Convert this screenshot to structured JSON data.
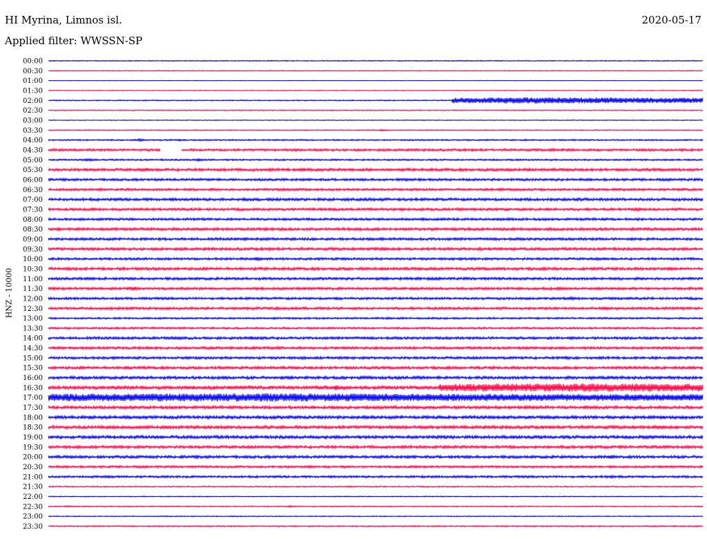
{
  "header": {
    "station": "HI Myrina, Limnos isl.",
    "date": "2020-05-17",
    "filter": "Applied filter: WWSSN-SP"
  },
  "colors": {
    "trace_a": "#0000ee",
    "trace_b": "#ff0044",
    "text": "#000000"
  },
  "chart_data": {
    "type": "line",
    "title": "HI Myrina, Limnos isl.",
    "ylabel": "HNZ - 10000",
    "ylabel_vertical": true,
    "row_labels": [
      "00:00",
      "00:30",
      "01:00",
      "01:30",
      "02:00",
      "02:30",
      "03:00",
      "03:30",
      "04:00",
      "04:30",
      "05:00",
      "05:30",
      "06:00",
      "06:30",
      "07:00",
      "07:30",
      "08:00",
      "08:30",
      "09:00",
      "09:30",
      "10:00",
      "10:30",
      "11:00",
      "11:30",
      "12:00",
      "12:30",
      "13:00",
      "13:30",
      "14:00",
      "14:30",
      "15:00",
      "15:30",
      "16:00",
      "16:30",
      "17:00",
      "17:30",
      "18:00",
      "18:30",
      "19:00",
      "19:30",
      "20:00",
      "20:30",
      "21:00",
      "21:30",
      "22:00",
      "22:30",
      "23:00",
      "23:30"
    ],
    "row_minutes": 30,
    "color_cycle": [
      "#0000ee",
      "#ff0044"
    ],
    "grid": false,
    "legend": "none",
    "rows": [
      {
        "noise": 0.5,
        "events": [
          [
            0.64,
            3,
            0.6
          ],
          [
            0.93,
            2,
            0.4
          ],
          [
            0.99,
            2,
            0.4
          ]
        ]
      },
      {
        "noise": 0.4,
        "events": [
          [
            0.01,
            2,
            0.6
          ],
          [
            0.05,
            2,
            0.5
          ]
        ]
      },
      {
        "noise": 0.3,
        "events": []
      },
      {
        "noise": 0.4,
        "events": [
          [
            0.21,
            1,
            0.4
          ],
          [
            0.99,
            1,
            0.8
          ]
        ]
      },
      {
        "noise": 0.6,
        "events": [
          [
            0.62,
            27,
            3.5
          ],
          [
            0.86,
            2,
            4.0
          ],
          [
            0.22,
            3,
            0.6
          ]
        ]
      },
      {
        "noise": 0.5,
        "events": [
          [
            0.63,
            2,
            0.6
          ],
          [
            0.73,
            4,
            0.6
          ],
          [
            0.96,
            3,
            0.6
          ]
        ]
      },
      {
        "noise": 0.4,
        "events": [
          [
            0.42,
            3,
            0.5
          ],
          [
            0.83,
            3,
            0.5
          ]
        ]
      },
      {
        "noise": 0.5,
        "events": [
          [
            0.51,
            3,
            1.2
          ],
          [
            0.58,
            3,
            0.8
          ],
          [
            0.78,
            2,
            0.6
          ],
          [
            0.93,
            2,
            0.6
          ]
        ]
      },
      {
        "noise": 0.8,
        "events": [
          [
            0.14,
            3,
            1.6
          ],
          [
            0.2,
            3,
            1.4
          ],
          [
            0.73,
            3,
            1.2
          ],
          [
            0.82,
            3,
            1.0
          ]
        ]
      },
      {
        "noise": 1.3,
        "events": [
          [
            0.02,
            3,
            1.5
          ],
          [
            0.17,
            3,
            1.5
          ],
          [
            0.77,
            3,
            2.0
          ],
          [
            0.88,
            3,
            1.3
          ]
        ],
        "gap": [
          0.171,
          0.203
        ]
      },
      {
        "noise": 0.9,
        "events": [
          [
            0.06,
            1,
            2.2
          ],
          [
            0.23,
            2,
            1.8
          ],
          [
            0.44,
            3,
            1.2
          ]
        ]
      },
      {
        "noise": 1.5,
        "events": [
          [
            0.15,
            2,
            2.4
          ],
          [
            0.39,
            2,
            2.4
          ],
          [
            0.49,
            2,
            1.6
          ],
          [
            0.7,
            2,
            1.5
          ]
        ]
      },
      {
        "noise": 1.3,
        "events": [
          [
            0.55,
            2,
            1.5
          ],
          [
            0.77,
            2,
            1.4
          ]
        ]
      },
      {
        "noise": 1.3,
        "events": [
          [
            0.08,
            2,
            2.0
          ],
          [
            0.38,
            2,
            1.4
          ],
          [
            0.69,
            2,
            1.8
          ],
          [
            0.97,
            2,
            1.2
          ]
        ]
      },
      {
        "noise": 1.5,
        "events": [
          [
            0.3,
            2,
            2.2
          ],
          [
            0.51,
            2,
            2.0
          ],
          [
            0.79,
            2,
            1.4
          ]
        ]
      },
      {
        "noise": 1.4,
        "events": [
          [
            0.07,
            2,
            2.0
          ],
          [
            0.54,
            2,
            1.8
          ],
          [
            0.76,
            2,
            1.6
          ],
          [
            0.9,
            2,
            2.2
          ]
        ]
      },
      {
        "noise": 1.3,
        "events": [
          [
            0.05,
            2,
            1.8
          ],
          [
            0.36,
            2,
            1.6
          ],
          [
            0.69,
            2,
            1.8
          ]
        ]
      },
      {
        "noise": 1.5,
        "events": [
          [
            0.08,
            2,
            1.8
          ],
          [
            0.5,
            2,
            1.8
          ],
          [
            0.62,
            2,
            1.6
          ],
          [
            0.74,
            2,
            1.4
          ]
        ]
      },
      {
        "noise": 1.4,
        "events": [
          [
            0.3,
            2,
            1.8
          ],
          [
            0.55,
            2,
            1.5
          ],
          [
            0.89,
            2,
            1.4
          ]
        ]
      },
      {
        "noise": 1.5,
        "events": [
          [
            0.51,
            2,
            2.2
          ],
          [
            0.58,
            2,
            1.5
          ],
          [
            0.69,
            2,
            1.6
          ]
        ]
      },
      {
        "noise": 1.3,
        "events": [
          [
            0.32,
            2,
            2.4
          ],
          [
            0.63,
            2,
            1.6
          ],
          [
            0.85,
            2,
            1.6
          ]
        ]
      },
      {
        "noise": 1.5,
        "events": [
          [
            0.48,
            2,
            1.8
          ],
          [
            0.59,
            2,
            1.8
          ],
          [
            0.95,
            2,
            2.2
          ]
        ]
      },
      {
        "noise": 1.4,
        "events": [
          [
            0.06,
            2,
            1.8
          ],
          [
            0.44,
            2,
            1.6
          ],
          [
            0.55,
            2,
            1.5
          ],
          [
            0.74,
            2,
            1.4
          ]
        ]
      },
      {
        "noise": 1.4,
        "events": [
          [
            0.13,
            3,
            3.0
          ],
          [
            0.72,
            2,
            1.8
          ],
          [
            0.78,
            2,
            2.2
          ]
        ]
      },
      {
        "noise": 1.3,
        "events": [
          [
            0.44,
            2,
            1.6
          ],
          [
            0.8,
            3,
            2.5
          ],
          [
            0.86,
            2,
            1.5
          ]
        ]
      },
      {
        "noise": 1.4,
        "events": [
          [
            0.35,
            2,
            1.6
          ],
          [
            0.6,
            2,
            1.6
          ],
          [
            0.85,
            2,
            2.2
          ]
        ]
      },
      {
        "noise": 1.0,
        "events": [
          [
            0.52,
            2,
            1.6
          ],
          [
            0.71,
            2,
            1.2
          ]
        ]
      },
      {
        "noise": 1.1,
        "events": [
          [
            0.16,
            2,
            1.4
          ],
          [
            0.43,
            2,
            1.3
          ]
        ]
      },
      {
        "noise": 1.4,
        "events": [
          [
            0.2,
            3,
            2.2
          ],
          [
            0.31,
            3,
            2.2
          ],
          [
            0.8,
            2,
            2.2
          ]
        ]
      },
      {
        "noise": 1.4,
        "events": [
          [
            0.35,
            2,
            2.0
          ],
          [
            0.5,
            2,
            1.4
          ],
          [
            0.73,
            2,
            1.6
          ]
        ]
      },
      {
        "noise": 1.4,
        "events": [
          [
            0.1,
            2,
            1.8
          ],
          [
            0.21,
            2,
            1.6
          ],
          [
            0.79,
            2,
            2.0
          ]
        ]
      },
      {
        "noise": 1.5,
        "events": [
          [
            0.12,
            2,
            2.0
          ],
          [
            0.63,
            2,
            1.6
          ],
          [
            0.9,
            2,
            1.6
          ]
        ]
      },
      {
        "noise": 1.6,
        "events": [
          [
            0.27,
            2,
            1.8
          ],
          [
            0.57,
            2,
            1.6
          ],
          [
            0.83,
            2,
            2.2
          ]
        ]
      },
      {
        "noise": 1.9,
        "events": [
          [
            0.44,
            2,
            3.4
          ],
          [
            0.6,
            42,
            4.6
          ],
          [
            0.71,
            3,
            4.0
          ]
        ]
      },
      {
        "noise": 2.4,
        "events": [
          [
            0.0,
            63,
            4.6
          ],
          [
            0.28,
            2,
            3.4
          ],
          [
            0.52,
            2,
            3.0
          ],
          [
            0.64,
            3,
            4.0
          ]
        ]
      },
      {
        "noise": 1.6,
        "events": [
          [
            0.35,
            2,
            1.8
          ],
          [
            0.73,
            2,
            1.8
          ],
          [
            0.82,
            2,
            2.2
          ]
        ]
      },
      {
        "noise": 1.7,
        "events": [
          [
            0.12,
            2,
            2.0
          ],
          [
            0.6,
            2,
            1.8
          ]
        ]
      },
      {
        "noise": 1.7,
        "events": [
          [
            0.18,
            2,
            2.0
          ],
          [
            0.61,
            2,
            1.8
          ],
          [
            0.93,
            2,
            2.0
          ]
        ]
      },
      {
        "noise": 1.7,
        "events": [
          [
            0.07,
            2,
            2.0
          ],
          [
            0.71,
            2,
            2.2
          ],
          [
            0.92,
            2,
            1.8
          ]
        ]
      },
      {
        "noise": 1.5,
        "events": [
          [
            0.57,
            2,
            1.6
          ],
          [
            0.94,
            2,
            1.8
          ]
        ]
      },
      {
        "noise": 1.5,
        "events": [
          [
            0.05,
            2,
            1.8
          ],
          [
            0.5,
            2,
            1.6
          ],
          [
            0.86,
            2,
            2.8
          ]
        ]
      },
      {
        "noise": 1.2,
        "events": [
          [
            0.4,
            2,
            1.6
          ],
          [
            0.86,
            2,
            1.6
          ]
        ]
      },
      {
        "noise": 1.2,
        "events": [
          [
            0.09,
            2,
            1.8
          ],
          [
            0.64,
            2,
            1.6
          ],
          [
            0.86,
            2,
            1.8
          ]
        ]
      },
      {
        "noise": 0.6,
        "events": [
          [
            0.46,
            3,
            1.0
          ],
          [
            0.62,
            3,
            0.8
          ]
        ]
      },
      {
        "noise": 0.5,
        "events": [
          [
            0.2,
            2,
            0.6
          ],
          [
            0.66,
            2,
            0.6
          ]
        ]
      },
      {
        "noise": 0.6,
        "events": [
          [
            0.03,
            3,
            1.2
          ],
          [
            0.37,
            3,
            1.2
          ],
          [
            0.82,
            2,
            0.8
          ]
        ]
      },
      {
        "noise": 0.5,
        "events": [
          [
            0.18,
            2,
            0.8
          ],
          [
            0.28,
            2,
            0.7
          ]
        ]
      },
      {
        "noise": 0.7,
        "events": []
      }
    ]
  }
}
